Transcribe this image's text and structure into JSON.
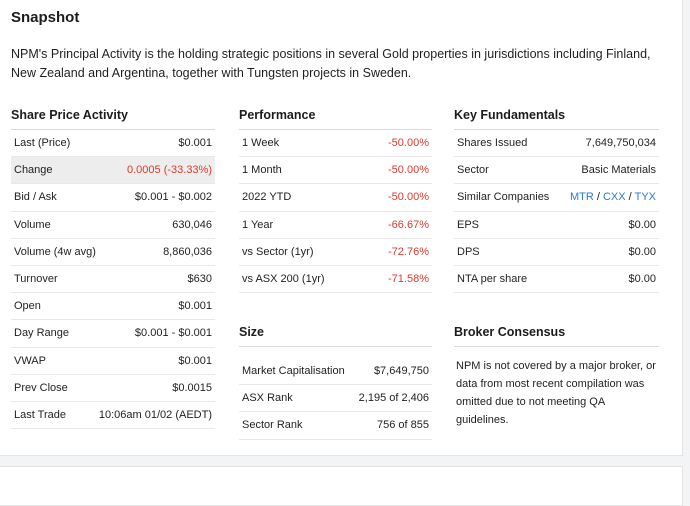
{
  "snapshot": {
    "title": "Snapshot",
    "description": "NPM's Principal Activity is the holding strategic positions in several Gold properties in jurisdictions including Finland, New Zealand and Argentina, together with Tungsten projects in Sweden."
  },
  "share_price_activity": {
    "heading": "Share Price Activity",
    "rows": [
      {
        "label": "Last (Price)",
        "value": "$0.001"
      },
      {
        "label": "Change",
        "value": "0.0005 (-33.33%)"
      },
      {
        "label": "Bid / Ask",
        "value": "$0.001 - $0.002"
      },
      {
        "label": "Volume",
        "value": "630,046"
      },
      {
        "label": "Volume (4w avg)",
        "value": "8,860,036"
      },
      {
        "label": "Turnover",
        "value": "$630"
      },
      {
        "label": "Open",
        "value": "$0.001"
      },
      {
        "label": "Day Range",
        "value": "$0.001 - $0.001"
      },
      {
        "label": "VWAP",
        "value": "$0.001"
      },
      {
        "label": "Prev Close",
        "value": "$0.0015"
      },
      {
        "label": "Last Trade",
        "value": "10:06am 01/02 (AEDT)"
      }
    ]
  },
  "performance": {
    "heading": "Performance",
    "rows": [
      {
        "label": "1 Week",
        "value": "-50.00%"
      },
      {
        "label": "1 Month",
        "value": "-50.00%"
      },
      {
        "label": "2022 YTD",
        "value": "-50.00%"
      },
      {
        "label": "1 Year",
        "value": "-66.67%"
      },
      {
        "label": "vs Sector (1yr)",
        "value": "-72.76%"
      },
      {
        "label": "vs ASX 200 (1yr)",
        "value": "-71.58%"
      }
    ]
  },
  "size": {
    "heading": "Size",
    "rows": [
      {
        "label": "Market Capitalisation",
        "value": "$7,649,750"
      },
      {
        "label": "ASX Rank",
        "value": "2,195 of 2,406"
      },
      {
        "label": "Sector Rank",
        "value": "756 of 855"
      }
    ]
  },
  "key_fundamentals": {
    "heading": "Key Fundamentals",
    "rows": [
      {
        "label": "Shares Issued",
        "value": "7,649,750,034"
      },
      {
        "label": "Sector",
        "value": "Basic Materials"
      },
      {
        "label": "Similar Companies",
        "links": [
          "MTR",
          "CXX",
          "TYX"
        ],
        "separator": "/"
      },
      {
        "label": "EPS",
        "value": "$0.00"
      },
      {
        "label": "DPS",
        "value": "$0.00"
      },
      {
        "label": "NTA per share",
        "value": "$0.00"
      }
    ]
  },
  "broker_consensus": {
    "heading": "Broker Consensus",
    "text": "NPM is not covered by a major broker, or data from most recent compilation was omitted due to not meeting QA guidelines."
  },
  "colors": {
    "negative": "#d93b30",
    "link": "#2b7bd1",
    "highlight_row": "#ededed"
  }
}
